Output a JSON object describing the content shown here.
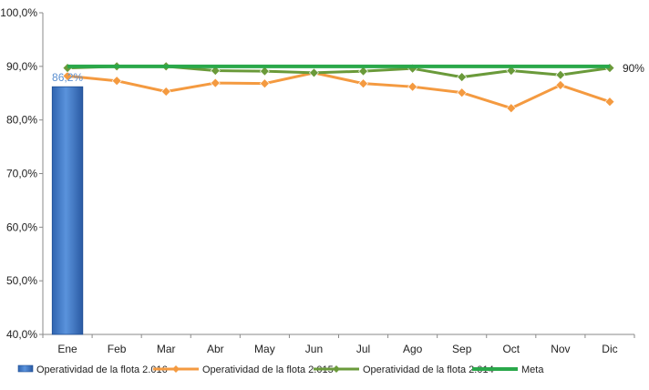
{
  "chart_data": {
    "type": "line",
    "categories": [
      "Ene",
      "Feb",
      "Mar",
      "Abr",
      "May",
      "Jun",
      "Jul",
      "Ago",
      "Sep",
      "Oct",
      "Nov",
      "Dic"
    ],
    "ylim": [
      40,
      100
    ],
    "yticks": [
      "40,0%",
      "50,0%",
      "60,0%",
      "70,0%",
      "80,0%",
      "90,0%",
      "100,0%"
    ],
    "grid": false,
    "legend_position": "bottom",
    "series": [
      {
        "name": "Operatividad de la flota 2.016",
        "type": "bar",
        "color": "#3a78c9",
        "values": [
          86.2,
          null,
          null,
          null,
          null,
          null,
          null,
          null,
          null,
          null,
          null,
          null
        ]
      },
      {
        "name": "Operatividad de la flota 2.015",
        "type": "line",
        "color": "#f49a40",
        "values": [
          88.2,
          87.3,
          85.3,
          86.9,
          86.8,
          88.8,
          86.8,
          86.2,
          85.1,
          82.2,
          86.5,
          83.4
        ]
      },
      {
        "name": "Operatividad de la flota 2.014",
        "type": "line",
        "color": "#6a9a3a",
        "values": [
          89.7,
          90.0,
          90.0,
          89.2,
          89.1,
          88.8,
          89.1,
          89.6,
          88.0,
          89.2,
          88.4,
          89.7
        ]
      },
      {
        "name": "Meta",
        "type": "line",
        "color": "#2aa84a",
        "values": [
          90,
          90,
          90,
          90,
          90,
          90,
          90,
          90,
          90,
          90,
          90,
          90
        ]
      }
    ],
    "data_labels": [
      {
        "series": 0,
        "index": 0,
        "text": "86,2%",
        "color": "#5b8fd0"
      },
      {
        "series": 3,
        "index": 11,
        "text": "90%",
        "color": "#222222"
      }
    ]
  }
}
